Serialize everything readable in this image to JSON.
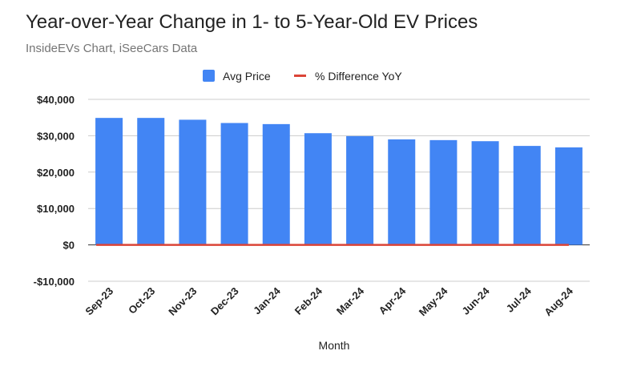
{
  "title": "Year-over-Year Change in 1- to 5-Year-Old EV Prices",
  "subtitle": "InsideEVs Chart, iSeeCars Data",
  "chart_data": {
    "type": "bar",
    "categories": [
      "Sep-23",
      "Oct-23",
      "Nov-23",
      "Dec-23",
      "Jan-24",
      "Feb-24",
      "Mar-24",
      "Apr-24",
      "May-24",
      "Jun-24",
      "Jul-24",
      "Aug-24"
    ],
    "series": [
      {
        "name": "Avg Price",
        "type": "bar",
        "color": "#4285f4",
        "values": [
          34900,
          34900,
          34400,
          33500,
          33200,
          30700,
          29900,
          29000,
          28800,
          28500,
          27200,
          26800
        ]
      },
      {
        "name": "% Difference YoY",
        "type": "line",
        "color": "#db4437",
        "values": [
          0,
          0,
          0,
          0,
          0,
          0,
          0,
          0,
          0,
          0,
          0,
          0
        ]
      }
    ],
    "xlabel": "Month",
    "ylabel": "",
    "ylim": [
      -10000,
      40000
    ],
    "yticks": [
      40000,
      30000,
      20000,
      10000,
      0,
      -10000
    ],
    "ytick_labels": [
      "$40,000",
      "$30,000",
      "$20,000",
      "$10,000",
      "$0",
      "-$10,000"
    ],
    "grid": true,
    "legend": "top-center"
  }
}
